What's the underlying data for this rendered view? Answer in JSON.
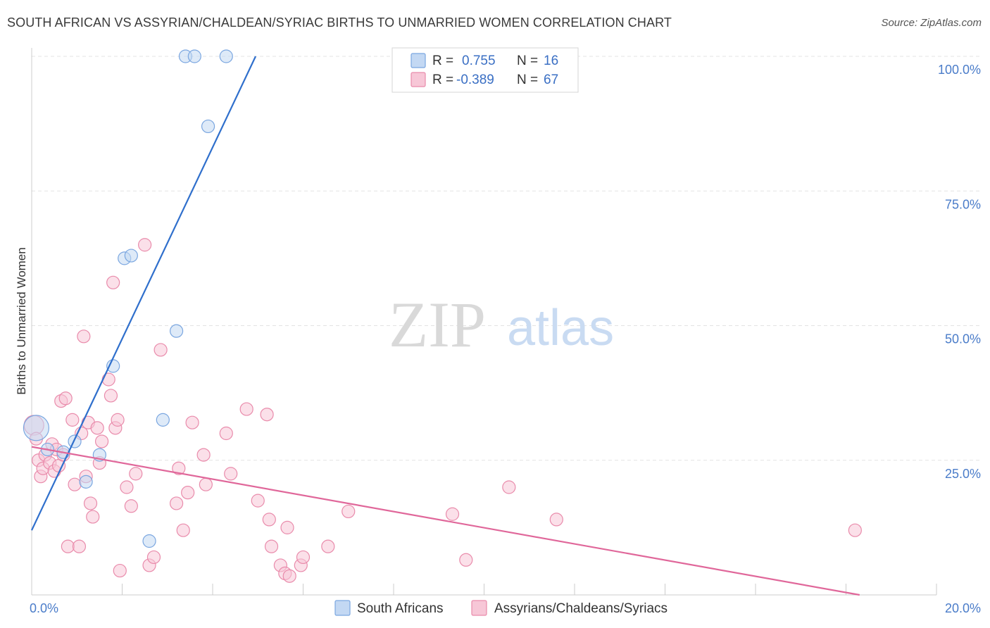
{
  "title": "SOUTH AFRICAN VS ASSYRIAN/CHALDEAN/SYRIAC BIRTHS TO UNMARRIED WOMEN CORRELATION CHART",
  "source": "Source: ZipAtlas.com",
  "watermark": {
    "zip": "ZIP",
    "atlas": "atlas"
  },
  "colors": {
    "blue": "#7aa6e0",
    "blue_fill": "#c3d8f3",
    "blue_line": "#2f6fcc",
    "pink": "#e98bab",
    "pink_fill": "#f7c7d7",
    "pink_line": "#e0679a"
  },
  "legend": {
    "rows": [
      {
        "r_label": "R =",
        "r_value": "0.755",
        "n_label": "N =",
        "n_value": "16"
      },
      {
        "r_label": "R =",
        "r_value": "-0.389",
        "n_label": "N =",
        "n_value": "67"
      }
    ]
  },
  "chart_data": {
    "type": "scatter",
    "title": "SOUTH AFRICAN VS ASSYRIAN/CHALDEAN/SYRIAC BIRTHS TO UNMARRIED WOMEN CORRELATION CHART",
    "xlabel": "",
    "ylabel": "Births to Unmarried Women",
    "xlim": [
      0,
      20
    ],
    "ylim": [
      0,
      100
    ],
    "x_tick_labels": [
      "0.0%",
      "20.0%"
    ],
    "y_tick_labels": [
      "100.0%",
      "75.0%",
      "50.0%",
      "25.0%"
    ],
    "y_tick_values": [
      100,
      75,
      50,
      25
    ],
    "series": [
      {
        "name": "South Africans",
        "color": "blue",
        "trend": {
          "x0": 0,
          "y0": 12,
          "x1": 4.95,
          "y1": 100
        },
        "points": [
          [
            0.1,
            31.0,
            18
          ],
          [
            0.35,
            27.0,
            9
          ],
          [
            0.7,
            26.5,
            9
          ],
          [
            0.95,
            28.5,
            9
          ],
          [
            1.2,
            21.0,
            9
          ],
          [
            1.5,
            26.0,
            9
          ],
          [
            1.8,
            42.5,
            9
          ],
          [
            2.05,
            62.5,
            9
          ],
          [
            2.2,
            63.0,
            9
          ],
          [
            2.6,
            10.0,
            9
          ],
          [
            2.9,
            32.5,
            9
          ],
          [
            3.2,
            49.0,
            9
          ],
          [
            3.4,
            100.0,
            9
          ],
          [
            3.6,
            100.0,
            9
          ],
          [
            3.9,
            87.0,
            9
          ],
          [
            4.3,
            100.0,
            9
          ]
        ]
      },
      {
        "name": "Assyrians/Chaldeans/Syriacs",
        "color": "pink",
        "trend": {
          "x0": 0,
          "y0": 27.5,
          "x1": 18.3,
          "y1": 0
        },
        "points": [
          [
            0.05,
            31.5,
            14
          ],
          [
            0.1,
            29.0,
            9
          ],
          [
            0.15,
            25.0,
            9
          ],
          [
            0.2,
            22.0,
            9
          ],
          [
            0.25,
            23.5,
            9
          ],
          [
            0.3,
            26.0,
            9
          ],
          [
            0.4,
            24.5,
            9
          ],
          [
            0.45,
            28.0,
            9
          ],
          [
            0.5,
            23.0,
            9
          ],
          [
            0.55,
            27.0,
            9
          ],
          [
            0.6,
            24.0,
            9
          ],
          [
            0.65,
            36.0,
            9
          ],
          [
            0.7,
            26.0,
            9
          ],
          [
            0.75,
            36.5,
            9
          ],
          [
            0.8,
            9.0,
            9
          ],
          [
            0.9,
            32.5,
            9
          ],
          [
            0.95,
            20.5,
            9
          ],
          [
            1.05,
            9.0,
            9
          ],
          [
            1.1,
            30.0,
            9
          ],
          [
            1.15,
            48.0,
            9
          ],
          [
            1.2,
            22.0,
            9
          ],
          [
            1.25,
            32.0,
            9
          ],
          [
            1.3,
            17.0,
            9
          ],
          [
            1.35,
            14.5,
            9
          ],
          [
            1.45,
            31.0,
            9
          ],
          [
            1.5,
            24.5,
            9
          ],
          [
            1.55,
            28.5,
            9
          ],
          [
            1.7,
            40.0,
            9
          ],
          [
            1.75,
            37.0,
            9
          ],
          [
            1.8,
            58.0,
            9
          ],
          [
            1.85,
            31.0,
            9
          ],
          [
            1.9,
            32.5,
            9
          ],
          [
            1.95,
            4.5,
            9
          ],
          [
            2.1,
            20.0,
            9
          ],
          [
            2.2,
            16.5,
            9
          ],
          [
            2.3,
            22.5,
            9
          ],
          [
            2.5,
            65.0,
            9
          ],
          [
            2.6,
            5.5,
            9
          ],
          [
            2.7,
            7.0,
            9
          ],
          [
            2.85,
            45.5,
            9
          ],
          [
            3.2,
            17.0,
            9
          ],
          [
            3.25,
            23.5,
            9
          ],
          [
            3.35,
            12.0,
            9
          ],
          [
            3.45,
            19.0,
            9
          ],
          [
            3.55,
            32.0,
            9
          ],
          [
            3.8,
            26.0,
            9
          ],
          [
            3.85,
            20.5,
            9
          ],
          [
            4.3,
            30.0,
            9
          ],
          [
            4.4,
            22.5,
            9
          ],
          [
            4.75,
            34.5,
            9
          ],
          [
            5.0,
            17.5,
            9
          ],
          [
            5.2,
            33.5,
            9
          ],
          [
            5.25,
            14.0,
            9
          ],
          [
            5.3,
            9.0,
            9
          ],
          [
            5.5,
            5.5,
            9
          ],
          [
            5.6,
            4.0,
            9
          ],
          [
            5.65,
            12.5,
            9
          ],
          [
            5.7,
            3.5,
            9
          ],
          [
            5.95,
            5.5,
            9
          ],
          [
            6.0,
            7.0,
            9
          ],
          [
            6.55,
            9.0,
            9
          ],
          [
            7.0,
            15.5,
            9
          ],
          [
            9.3,
            15.0,
            9
          ],
          [
            9.6,
            6.5,
            9
          ],
          [
            10.55,
            20.0,
            9
          ],
          [
            11.6,
            14.0,
            9
          ],
          [
            18.2,
            12.0,
            9
          ]
        ]
      }
    ]
  }
}
